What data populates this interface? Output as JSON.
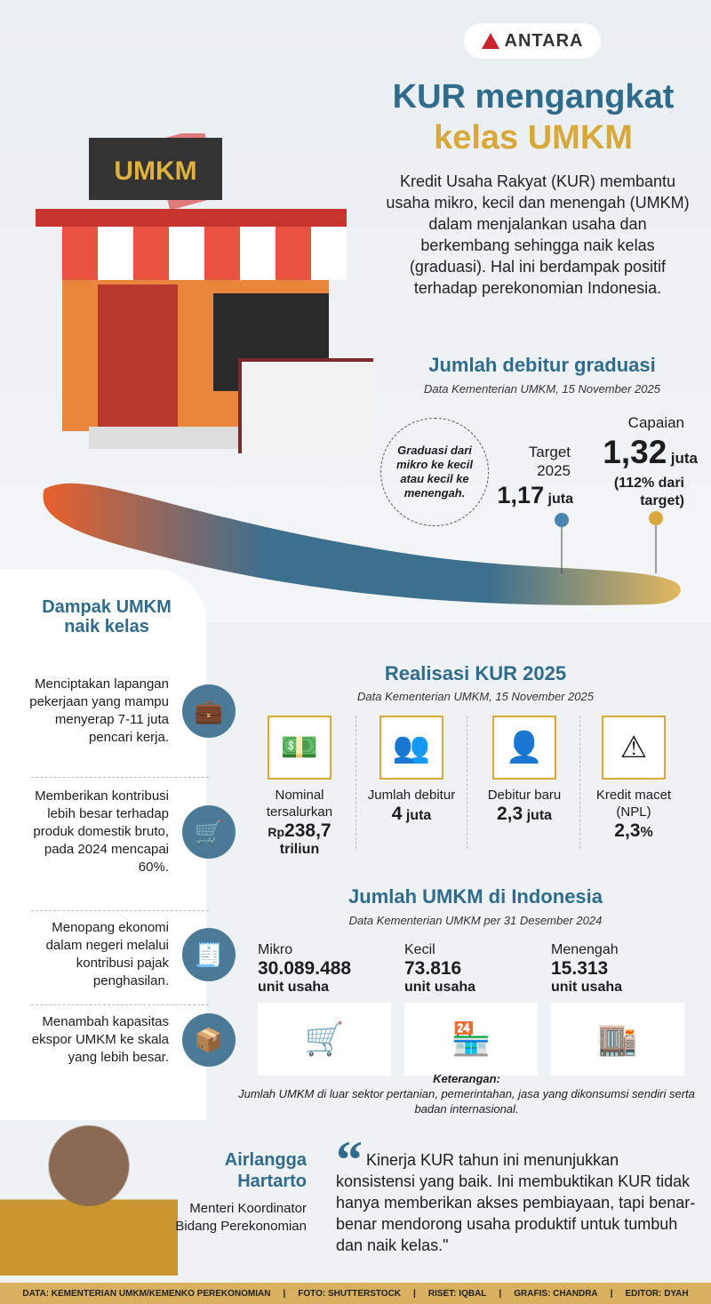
{
  "logo": {
    "text": "ANTARA"
  },
  "title": {
    "line1": "KUR mengangkat",
    "line2": "kelas UMKM"
  },
  "store_sign": "UMKM",
  "intro": "Kredit Usaha Rakyat (KUR) membantu usaha mikro, kecil dan menengah (UMKM) dalam menjalankan usaha dan berkembang sehingga naik kelas (graduasi). Hal ini berdampak positif terhadap perekonomian Indonesia.",
  "graduasi": {
    "title": "Jumlah debitur graduasi",
    "source": "Data Kementerian UMKM, 15 November 2025",
    "note": "Graduasi dari mikro ke kecil atau kecil ke menengah.",
    "target_label": "Target 2025",
    "target_value": "1,17",
    "target_unit": "juta",
    "capaian_label": "Capaian",
    "capaian_value": "1,32",
    "capaian_unit": "juta",
    "capaian_pct": "(112% dari target)",
    "colors": {
      "target": "#4b86b0",
      "capaian": "#d9a83a"
    }
  },
  "dampak": {
    "title": "Dampak UMKM naik kelas",
    "items": [
      {
        "text": "Menciptakan lapangan pekerjaan yang mampu menyerap 7-11 juta pencari kerja.",
        "icon": "briefcase-icon"
      },
      {
        "text": "Memberikan kontribusi lebih besar terhadap produk domestik bruto, pada 2024 mencapai 60%.",
        "icon": "cart-icon"
      },
      {
        "text": "Menopang ekonomi dalam negeri melalui kontribusi pajak penghasilan.",
        "icon": "receipt-icon"
      },
      {
        "text": "Menambah kapasitas ekspor UMKM ke skala yang lebih besar.",
        "icon": "box-globe-icon"
      }
    ]
  },
  "kur": {
    "title": "Realisasi KUR 2025",
    "source": "Data Kementerian UMKM, 15 November 2025",
    "items": [
      {
        "label": "Nominal tersalurkan",
        "prefix": "Rp",
        "value": "238,7",
        "unit": "triliun",
        "icon": "money-icon"
      },
      {
        "label": "Jumlah debitur",
        "prefix": "",
        "value": "4",
        "unit": "juta",
        "icon": "people-icon"
      },
      {
        "label": "Debitur baru",
        "prefix": "",
        "value": "2,3",
        "unit": "juta",
        "icon": "new-user-icon"
      },
      {
        "label": "Kredit macet (NPL)",
        "prefix": "",
        "value": "2,3",
        "unit": "%",
        "icon": "warning-chart-icon"
      }
    ]
  },
  "umkm": {
    "title": "Jumlah UMKM di Indonesia",
    "source": "Data Kementerian UMKM per 31 Desember 2024",
    "items": [
      {
        "label": "Mikro",
        "value": "30.089.488",
        "unit": "unit usaha",
        "icon": "food-cart-icon"
      },
      {
        "label": "Kecil",
        "value": "73.816",
        "unit": "unit usaha",
        "icon": "stall-icon"
      },
      {
        "label": "Menengah",
        "value": "15.313",
        "unit": "unit usaha",
        "icon": "shop-icon"
      }
    ],
    "note_title": "Keterangan:",
    "note": "Jumlah UMKM di luar sektor pertanian, pemerintahan, jasa yang dikonsumsi sendiri serta badan internasional."
  },
  "quote": {
    "name": "Airlangga Hartarto",
    "role": "Menteri Koordinator Bidang Perekonomian",
    "text": "Kinerja KUR tahun ini menunjukkan konsistensi yang baik. Ini membuktikan KUR tidak hanya memberikan akses pembiayaan, tapi benar-benar mendorong usaha produktif untuk tumbuh dan naik kelas.\""
  },
  "footer": [
    "DATA: KEMENTERIAN UMKM/KEMENKO PEREKONOMIAN",
    "FOTO: SHUTTERSTOCK",
    "RISET: IQBAL",
    "GRAFIS: CHANDRA",
    "EDITOR: DYAH"
  ]
}
